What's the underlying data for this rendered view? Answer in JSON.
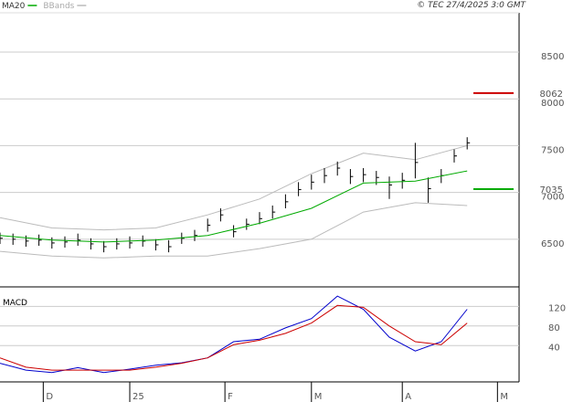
{
  "chart_data": [
    {
      "type": "ohlc",
      "title": "© TEC 27/4/2025 3:0 GMT",
      "color": "#000000",
      "x": [
        0,
        3,
        6,
        9,
        12,
        15,
        18,
        21,
        24,
        27,
        30,
        33,
        36,
        39,
        42,
        45,
        48,
        51,
        54,
        57,
        60,
        63,
        66,
        69,
        72,
        75,
        78,
        81,
        84,
        87,
        90,
        93,
        96,
        99,
        102,
        105,
        108
      ],
      "high": [
        6570,
        6560,
        6540,
        6550,
        6520,
        6530,
        6560,
        6510,
        6480,
        6510,
        6530,
        6540,
        6500,
        6490,
        6570,
        6600,
        6720,
        6830,
        6650,
        6720,
        6790,
        6860,
        6980,
        7110,
        7190,
        7260,
        7330,
        7250,
        7260,
        7230,
        7170,
        7210,
        7530,
        7160,
        7250,
        7460,
        7590
      ],
      "low": [
        6450,
        6440,
        6420,
        6430,
        6400,
        6410,
        6430,
        6390,
        6360,
        6390,
        6400,
        6420,
        6380,
        6360,
        6450,
        6480,
        6580,
        6690,
        6520,
        6600,
        6660,
        6720,
        6830,
        6960,
        7030,
        7100,
        7180,
        7090,
        7110,
        7080,
        6930,
        7040,
        7150,
        6890,
        7100,
        7320,
        7460
      ],
      "close": [
        6510,
        6500,
        6480,
        6490,
        6460,
        6470,
        6490,
        6450,
        6420,
        6450,
        6460,
        6480,
        6440,
        6420,
        6510,
        6540,
        6650,
        6760,
        6580,
        6660,
        6720,
        6790,
        6900,
        7030,
        7110,
        7180,
        7260,
        7170,
        7190,
        7160,
        7080,
        7130,
        7320,
        7040,
        7180,
        7390,
        7530
      ],
      "series": [
        {
          "name": "MA20",
          "color": "#00aa00",
          "x": [
            0,
            12,
            24,
            36,
            48,
            60,
            72,
            84,
            96,
            108
          ],
          "values": [
            6540,
            6490,
            6470,
            6490,
            6540,
            6670,
            6830,
            7100,
            7120,
            7230
          ]
        },
        {
          "name": "BBands",
          "color": "#bbbbbb",
          "x": [
            0,
            12,
            24,
            36,
            48,
            60,
            72,
            84,
            96,
            108
          ],
          "values": [
            6730,
            6620,
            6600,
            6620,
            6760,
            6930,
            7200,
            7420,
            7350,
            7500
          ],
          "lower": [
            6370,
            6320,
            6300,
            6320,
            6320,
            6400,
            6500,
            6790,
            6890,
            6860
          ]
        }
      ],
      "levels": [
        {
          "value": 8062,
          "color": "#cc0000"
        },
        {
          "value": 7035,
          "color": "#00aa00"
        }
      ],
      "xlim": [
        0,
        120
      ],
      "ylim": [
        6010,
        8920
      ],
      "yticks": [
        6500,
        7000,
        7500,
        8000,
        8500
      ],
      "grid": true
    },
    {
      "type": "line",
      "title": "MACD",
      "x": [
        0,
        6,
        12,
        18,
        24,
        30,
        36,
        42,
        48,
        54,
        60,
        66,
        72,
        78,
        84,
        90,
        96,
        102,
        108
      ],
      "series": [
        {
          "color": "#0000cc",
          "values": [
            4,
            -10,
            -15,
            -5,
            -15,
            -8,
            0,
            5,
            15,
            48,
            53,
            76,
            95,
            141,
            114,
            57,
            29,
            48,
            114
          ]
        },
        {
          "color": "#cc0000",
          "values": [
            15,
            -4,
            -10,
            -10,
            -10,
            -10,
            -4,
            4,
            15,
            42,
            51,
            65,
            86,
            122,
            118,
            80,
            48,
            42,
            86
          ]
        }
      ],
      "xlim": [
        0,
        120
      ],
      "ylim": [
        -34,
        156
      ],
      "yticks": [
        40,
        80,
        120
      ],
      "grid": true,
      "xticks": [
        {
          "value": 10,
          "label": "D"
        },
        {
          "value": 30,
          "label": "25"
        },
        {
          "value": 52,
          "label": "F"
        },
        {
          "value": 72,
          "label": "M"
        },
        {
          "value": 93,
          "label": "A"
        },
        {
          "value": 115,
          "label": "M"
        }
      ]
    }
  ]
}
